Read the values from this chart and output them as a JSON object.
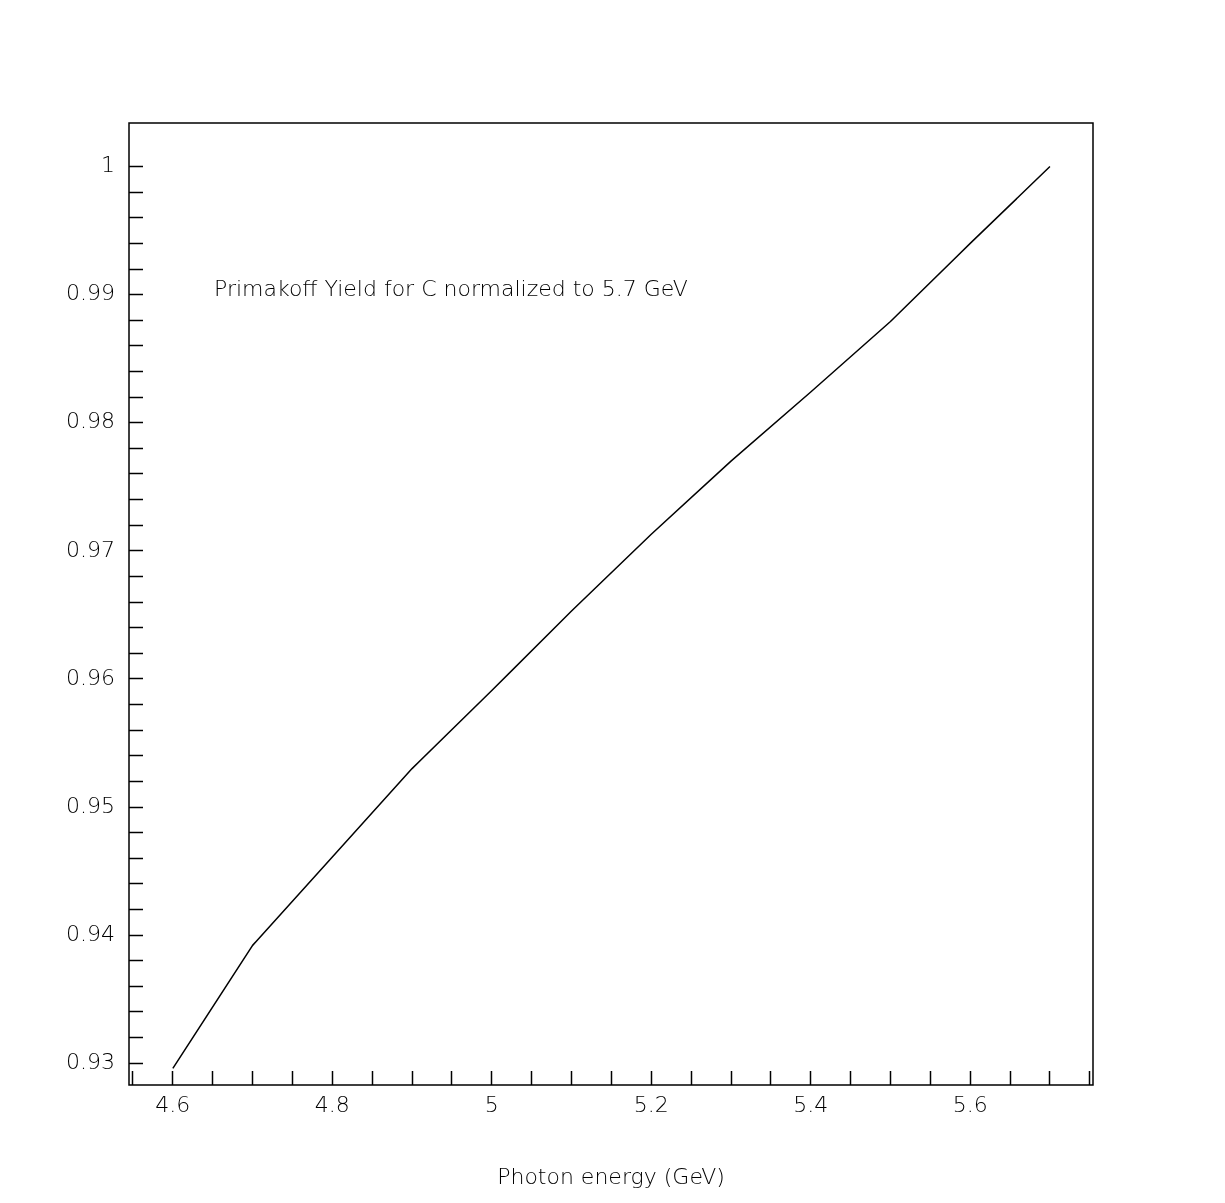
{
  "chart_data": {
    "type": "line",
    "xlabel": "Photon energy (GeV)",
    "annotations": [
      "Primakoff Yield for C normalized to 5.7 GeV"
    ],
    "x": [
      4.6,
      4.7,
      4.8,
      4.9,
      5.0,
      5.1,
      5.2,
      5.3,
      5.4,
      5.5,
      5.6,
      5.7
    ],
    "series": [
      {
        "color": "#000000",
        "values": [
          0.9296,
          0.9392,
          0.9461,
          0.953,
          0.9591,
          0.9653,
          0.9713,
          0.977,
          0.9824,
          0.9879,
          0.994,
          1.0
        ]
      }
    ],
    "xlim": [
      4.545,
      5.754
    ],
    "ylim": [
      0.9283,
      1.0034
    ],
    "xticks": [
      {
        "value": 4.55,
        "label": null
      },
      4.6,
      {
        "value": 4.65,
        "label": null
      },
      {
        "value": 4.7,
        "label": null
      },
      {
        "value": 4.75,
        "label": null
      },
      4.8,
      {
        "value": 4.85,
        "label": null
      },
      {
        "value": 4.9,
        "label": null
      },
      {
        "value": 4.95,
        "label": null
      },
      5,
      {
        "value": 5.05,
        "label": null
      },
      {
        "value": 5.1,
        "label": null
      },
      {
        "value": 5.15,
        "label": null
      },
      5.2,
      {
        "value": 5.25,
        "label": null
      },
      {
        "value": 5.3,
        "label": null
      },
      {
        "value": 5.35,
        "label": null
      },
      5.4,
      {
        "value": 5.45,
        "label": null
      },
      {
        "value": 5.5,
        "label": null
      },
      {
        "value": 5.55,
        "label": null
      },
      5.6,
      {
        "value": 5.65,
        "label": null
      },
      {
        "value": 5.7,
        "label": null
      },
      {
        "value": 5.75,
        "label": null
      }
    ],
    "yticks": [
      0.93,
      {
        "value": 0.932,
        "label": null
      },
      {
        "value": 0.934,
        "label": null
      },
      {
        "value": 0.936,
        "label": null
      },
      {
        "value": 0.938,
        "label": null
      },
      0.94,
      {
        "value": 0.942,
        "label": null
      },
      {
        "value": 0.944,
        "label": null
      },
      {
        "value": 0.946,
        "label": null
      },
      {
        "value": 0.948,
        "label": null
      },
      0.95,
      {
        "value": 0.952,
        "label": null
      },
      {
        "value": 0.954,
        "label": null
      },
      {
        "value": 0.956,
        "label": null
      },
      {
        "value": 0.958,
        "label": null
      },
      0.96,
      {
        "value": 0.962,
        "label": null
      },
      {
        "value": 0.964,
        "label": null
      },
      {
        "value": 0.966,
        "label": null
      },
      {
        "value": 0.968,
        "label": null
      },
      0.97,
      {
        "value": 0.972,
        "label": null
      },
      {
        "value": 0.974,
        "label": null
      },
      {
        "value": 0.976,
        "label": null
      },
      {
        "value": 0.978,
        "label": null
      },
      0.98,
      {
        "value": 0.982,
        "label": null
      },
      {
        "value": 0.984,
        "label": null
      },
      {
        "value": 0.986,
        "label": null
      },
      {
        "value": 0.988,
        "label": null
      },
      0.99,
      {
        "value": 0.992,
        "label": null
      },
      {
        "value": 0.994,
        "label": null
      },
      {
        "value": 0.996,
        "label": null
      },
      {
        "value": 0.998,
        "label": null
      },
      1
    ],
    "grid": false,
    "legend": false,
    "marker": "none",
    "line_style": "solid"
  }
}
